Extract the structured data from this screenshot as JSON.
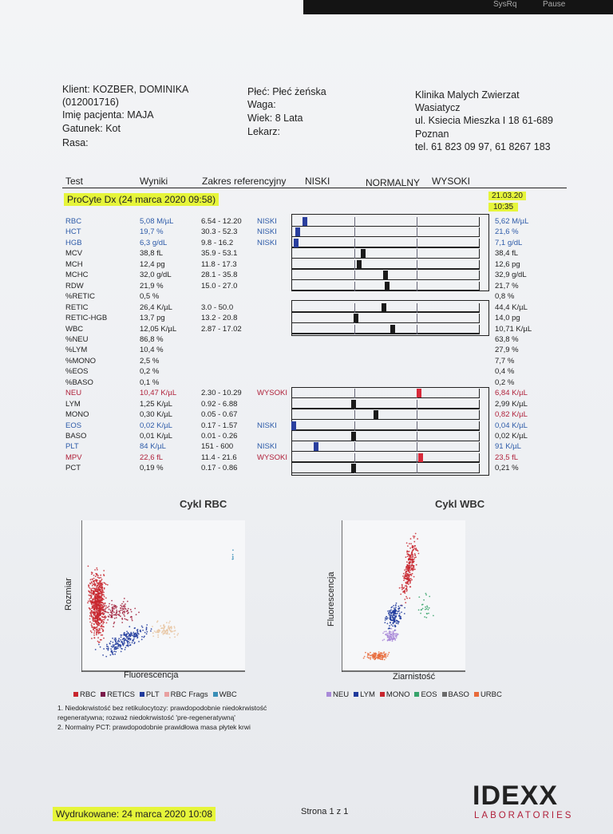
{
  "topbar": {
    "key1": "SysRq",
    "key2": "Pause"
  },
  "client": {
    "line1": "Klient: KOZBER, DOMINIKA",
    "line2": "(012001716)",
    "line3": "Imię pacjenta: MAJA",
    "line4": "Gatunek: Kot",
    "line5": "Rasa:"
  },
  "patient": {
    "line1": "Płeć: Płeć żeńska",
    "line2": "Waga:",
    "line3": "Wiek: 8 Lata",
    "line4": "Lekarz:"
  },
  "clinic": {
    "line1": "Klinika Malych Zwierzat",
    "line2": "Wasiatycz",
    "line3": "ul. Ksiecia Mieszka I 18  61-689",
    "line4": "Poznan",
    "line5": "tel. 61 823 09 97, 61 8267 183"
  },
  "columns": {
    "test": "Test",
    "results": "Wyniki",
    "range": "Zakres referencyjny",
    "low": "NISKI",
    "normal": "NORMALNY",
    "high": "WYSOKI"
  },
  "run": {
    "title": "ProCyte Dx (24 marca 2020 09:58)",
    "prev_date": "21.03.20",
    "prev_time": "10:35"
  },
  "colors": {
    "blue": "#2c5aa8",
    "red": "#b0203a",
    "highlight": "#e6f53a"
  },
  "rows": [
    {
      "name": "RBC",
      "value": "5,08 M/µL",
      "ref": "6.54 - 12.20",
      "flag": "NISKI",
      "prev": "5,62 M/µL",
      "color": "blue",
      "gauge": 0.07
    },
    {
      "name": "HCT",
      "value": "19,7 %",
      "ref": "30.3 - 52.3",
      "flag": "NISKI",
      "prev": "21,6 %",
      "color": "blue",
      "gauge": 0.03
    },
    {
      "name": "HGB",
      "value": "6,3 g/dL",
      "ref": "9.8 - 16.2",
      "flag": "NISKI",
      "prev": "7,1 g/dL",
      "color": "blue",
      "gauge": 0.02
    },
    {
      "name": "MCV",
      "value": "38,8 fL",
      "ref": "35.9 - 53.1",
      "flag": "",
      "prev": "38,4 fL",
      "color": "blk",
      "gauge": 0.38
    },
    {
      "name": "MCH",
      "value": "12,4 pg",
      "ref": "11.8 - 17.3",
      "flag": "",
      "prev": "12,6 pg",
      "color": "blk",
      "gauge": 0.36
    },
    {
      "name": "MCHC",
      "value": "32,0 g/dL",
      "ref": "28.1 - 35.8",
      "flag": "",
      "prev": "32,9 g/dL",
      "color": "blk",
      "gauge": 0.5
    },
    {
      "name": "RDW",
      "value": "21,9 %",
      "ref": "15.0 - 27.0",
      "flag": "",
      "prev": "21,7 %",
      "color": "blk",
      "gauge": 0.51
    },
    {
      "name": "%RETIC",
      "value": "0,5 %",
      "ref": "",
      "flag": "",
      "prev": "0,8 %",
      "color": "blk",
      "gauge": null
    },
    {
      "name": "RETIC",
      "value": "26,4 K/µL",
      "ref": "3.0 - 50.0",
      "flag": "",
      "prev": "44,4 K/µL",
      "color": "blk",
      "gauge": 0.49
    },
    {
      "name": "RETIC-HGB",
      "value": "13,7 pg",
      "ref": "13.2 - 20.8",
      "flag": "",
      "prev": "14,0 pg",
      "color": "blk",
      "gauge": 0.34
    },
    {
      "name": "WBC",
      "value": "12,05 K/µL",
      "ref": "2.87 - 17.02",
      "flag": "",
      "prev": "10,71 K/µL",
      "color": "blk",
      "gauge": 0.54
    },
    {
      "name": "%NEU",
      "value": "86,8 %",
      "ref": "",
      "flag": "",
      "prev": "63,8 %",
      "color": "blk",
      "gauge": null
    },
    {
      "name": "%LYM",
      "value": "10,4 %",
      "ref": "",
      "flag": "",
      "prev": "27,9 %",
      "color": "blk",
      "gauge": null
    },
    {
      "name": "%MONO",
      "value": "2,5 %",
      "ref": "",
      "flag": "",
      "prev": "7,7 %",
      "color": "blk",
      "gauge": null
    },
    {
      "name": "%EOS",
      "value": "0,2 %",
      "ref": "",
      "flag": "",
      "prev": "0,4 %",
      "color": "blk",
      "gauge": null
    },
    {
      "name": "%BASO",
      "value": "0,1 %",
      "ref": "",
      "flag": "",
      "prev": "0,2 %",
      "color": "blk",
      "gauge": null
    },
    {
      "name": "NEU",
      "value": "10,47 K/µL",
      "ref": "2.30 - 10.29",
      "flag": "WYSOKI",
      "prev": "6,84 K/µL",
      "color": "red",
      "gauge": 0.68
    },
    {
      "name": "LYM",
      "value": "1,25 K/µL",
      "ref": "0.92 - 6.88",
      "flag": "",
      "prev": "2,99 K/µL",
      "color": "blk",
      "gauge": 0.33
    },
    {
      "name": "MONO",
      "value": "0,30 K/µL",
      "ref": "0.05 - 0.67",
      "flag": "",
      "prev": "0,82 K/µL",
      "color": "blk",
      "prevColor": "red",
      "gauge": 0.45
    },
    {
      "name": "EOS",
      "value": "0,02 K/µL",
      "ref": "0.17 - 1.57",
      "flag": "NISKI",
      "prev": "0,04 K/µL",
      "color": "blue",
      "gauge": 0.01
    },
    {
      "name": "BASO",
      "value": "0,01 K/µL",
      "ref": "0.01 - 0.26",
      "flag": "",
      "prev": "0,02 K/µL",
      "color": "blk",
      "gauge": 0.33
    },
    {
      "name": "PLT",
      "value": "84 K/µL",
      "ref": "151 - 600",
      "flag": "NISKI",
      "prev": "91 K/µL",
      "color": "blue",
      "gauge": 0.13
    },
    {
      "name": "MPV",
      "value": "22,6 fL",
      "ref": "11.4 - 21.6",
      "flag": "WYSOKI",
      "prev": "23,5 fL",
      "color": "red",
      "gauge": 0.69
    },
    {
      "name": "PCT",
      "value": "0,19 %",
      "ref": "0.17 - 0.86",
      "flag": "",
      "prev": "0,21 %",
      "color": "blk",
      "gauge": 0.33
    }
  ],
  "rbc_plot": {
    "title": "Cykl RBC",
    "ylabel": "Rozmiar",
    "xlabel": "Fluorescencja",
    "legend": [
      {
        "label": "RBC",
        "color": "#c8262e"
      },
      {
        "label": "RETICS",
        "color": "#7a1a4a"
      },
      {
        "label": "PLT",
        "color": "#1f3a9c"
      },
      {
        "label": "RBC Frags",
        "color": "#e8a0a0"
      },
      {
        "label": "WBC",
        "color": "#3a8fb7"
      }
    ]
  },
  "wbc_plot": {
    "title": "Cykl WBC",
    "ylabel": "Fluorescencja",
    "xlabel": "Ziarnistość",
    "legend": [
      {
        "label": "NEU",
        "color": "#a98ad8"
      },
      {
        "label": "LYM",
        "color": "#1f3a9c"
      },
      {
        "label": "MONO",
        "color": "#c8262e"
      },
      {
        "label": "EOS",
        "color": "#36a36a"
      },
      {
        "label": "BASO",
        "color": "#6b6b6b"
      },
      {
        "label": "URBC",
        "color": "#e86a3a"
      }
    ]
  },
  "notes": {
    "n1a": "1. Niedokrwistość bez retikulocytozy: prawdopodobnie niedokrwistość",
    "n1b": "regeneratywna; rozważ niedokrwistość 'pre-regeneratywną'",
    "n2": "2. Normalny PCT: prawdopodobnie prawidłowa masa płytek krwi"
  },
  "footer": {
    "printed": "Wydrukowane: 24 marca 2020 10:08",
    "page": "Strona 1 z 1",
    "logo": "IDEXX",
    "logo_sub": "LABORATORIES"
  }
}
